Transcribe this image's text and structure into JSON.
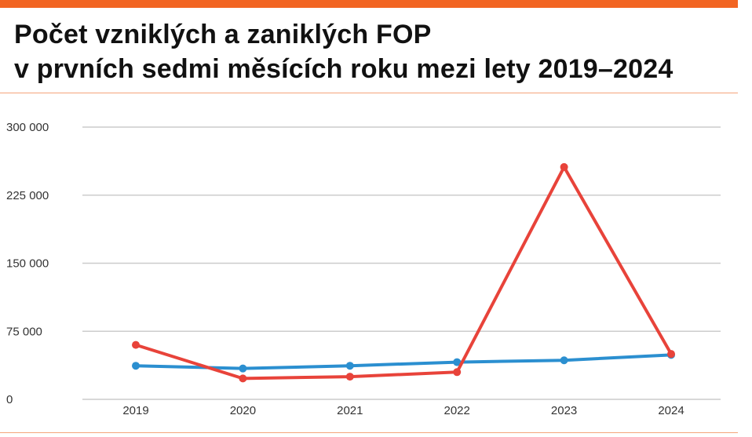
{
  "chart_data": {
    "type": "line",
    "title": "Počet vzniklých a zaniklých FOP",
    "subtitle": "v prvních sedmi měsících roku mezi lety 2019–2024",
    "categories": [
      "2019",
      "2020",
      "2021",
      "2022",
      "2023",
      "2024"
    ],
    "series": [
      {
        "color": "#2b8fd0",
        "values": [
          37000,
          34000,
          37000,
          41000,
          43000,
          49000
        ]
      },
      {
        "color": "#e8433a",
        "values": [
          60000,
          23000,
          25000,
          30000,
          256000,
          50000
        ]
      }
    ],
    "ylim": [
      0,
      300000
    ],
    "yticks": [
      {
        "value": 0,
        "label": "0"
      },
      {
        "value": 75000,
        "label": "75 000"
      },
      {
        "value": 150000,
        "label": "150 000"
      },
      {
        "value": 225000,
        "label": "225 000"
      },
      {
        "value": 300000,
        "label": "300 000"
      }
    ],
    "grid": true,
    "legend": "none"
  },
  "colors": {
    "accent": "#f26522",
    "grid": "#cccccc"
  }
}
